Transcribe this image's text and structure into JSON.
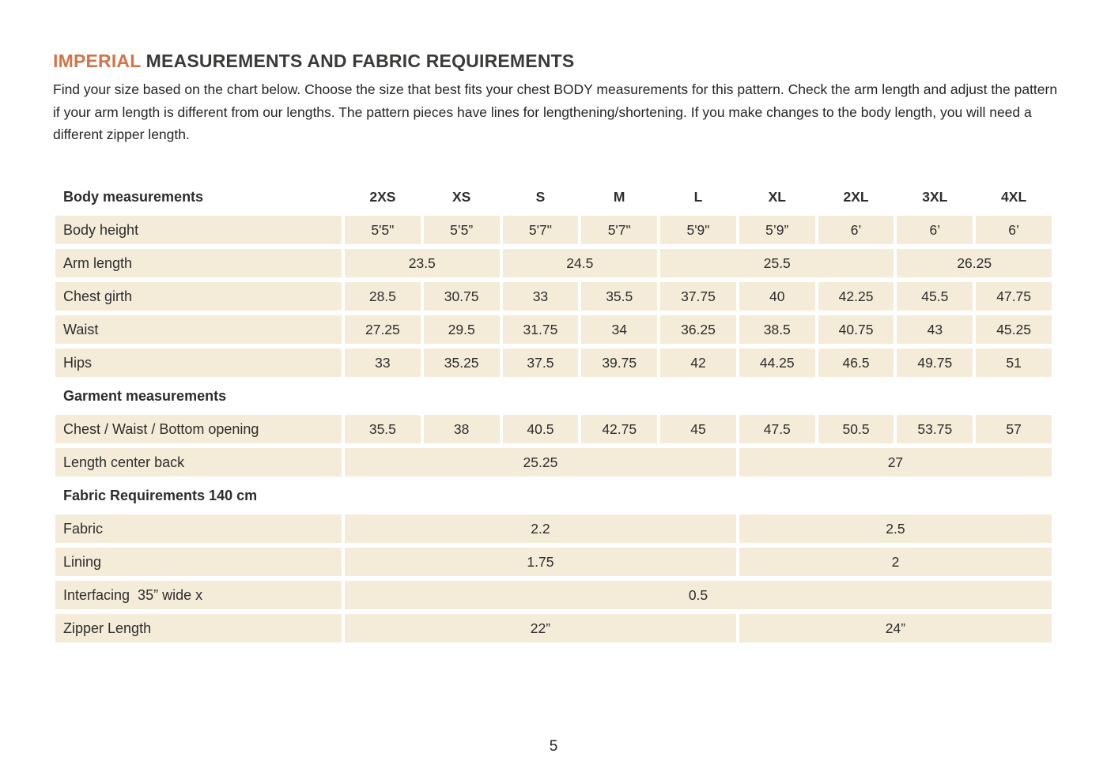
{
  "page": {
    "title": {
      "highlight": "IMPERIAL",
      "rest": " MEASUREMENTS AND FABRIC REQUIREMENTS"
    },
    "intro": "Find your size based on the chart below. Choose the size that best fits your chest BODY measurements for this pattern. Check the arm length and adjust the pattern if your arm length is different from our lengths. The pattern pieces have lines for lengthening/shortening. If you make changes to the body length, you will need a different zipper length.",
    "page_number": "5"
  },
  "colors": {
    "accent_orange": "#d2754a",
    "cell_beige": "#f4ecd9",
    "text": "#2d2d2b"
  },
  "table": {
    "header": {
      "label": "Body measurements",
      "sizes": [
        "2XS",
        "XS",
        "S",
        "M",
        "L",
        "XL",
        "2XL",
        "3XL",
        "4XL"
      ]
    },
    "rows": [
      {
        "type": "data",
        "label": "Body height",
        "cells": [
          {
            "value": "5'5\"",
            "span": 1
          },
          {
            "value": "5’5”",
            "span": 1
          },
          {
            "value": "5'7\"",
            "span": 1
          },
          {
            "value": "5'7\"",
            "span": 1
          },
          {
            "value": "5'9\"",
            "span": 1
          },
          {
            "value": "5’9”",
            "span": 1
          },
          {
            "value": "6’",
            "span": 1
          },
          {
            "value": "6’",
            "span": 1
          },
          {
            "value": "6’",
            "span": 1
          }
        ]
      },
      {
        "type": "data",
        "label": "Arm length",
        "cells": [
          {
            "value": "23.5",
            "span": 2
          },
          {
            "value": "24.5",
            "span": 2
          },
          {
            "value": "25.5",
            "span": 3
          },
          {
            "value": "26.25",
            "span": 2
          }
        ]
      },
      {
        "type": "data",
        "label": "Chest girth",
        "cells": [
          {
            "value": "28.5",
            "span": 1
          },
          {
            "value": "30.75",
            "span": 1
          },
          {
            "value": "33",
            "span": 1
          },
          {
            "value": "35.5",
            "span": 1
          },
          {
            "value": "37.75",
            "span": 1
          },
          {
            "value": "40",
            "span": 1
          },
          {
            "value": "42.25",
            "span": 1
          },
          {
            "value": "45.5",
            "span": 1
          },
          {
            "value": "47.75",
            "span": 1
          }
        ]
      },
      {
        "type": "data",
        "label": "Waist",
        "cells": [
          {
            "value": "27.25",
            "span": 1
          },
          {
            "value": "29.5",
            "span": 1
          },
          {
            "value": "31.75",
            "span": 1
          },
          {
            "value": "34",
            "span": 1
          },
          {
            "value": "36.25",
            "span": 1
          },
          {
            "value": "38.5",
            "span": 1
          },
          {
            "value": "40.75",
            "span": 1
          },
          {
            "value": "43",
            "span": 1
          },
          {
            "value": "45.25",
            "span": 1
          }
        ]
      },
      {
        "type": "data",
        "label": "Hips",
        "cells": [
          {
            "value": "33",
            "span": 1
          },
          {
            "value": "35.25",
            "span": 1
          },
          {
            "value": "37.5",
            "span": 1
          },
          {
            "value": "39.75",
            "span": 1
          },
          {
            "value": "42",
            "span": 1
          },
          {
            "value": "44.25",
            "span": 1
          },
          {
            "value": "46.5",
            "span": 1
          },
          {
            "value": "49.75",
            "span": 1
          },
          {
            "value": "51",
            "span": 1
          }
        ]
      },
      {
        "type": "section",
        "label": "Garment measurements"
      },
      {
        "type": "data",
        "label": "Chest / Waist / Bottom opening",
        "cells": [
          {
            "value": "35.5",
            "span": 1
          },
          {
            "value": "38",
            "span": 1
          },
          {
            "value": "40.5",
            "span": 1
          },
          {
            "value": "42.75",
            "span": 1
          },
          {
            "value": "45",
            "span": 1
          },
          {
            "value": "47.5",
            "span": 1
          },
          {
            "value": "50.5",
            "span": 1
          },
          {
            "value": "53.75",
            "span": 1
          },
          {
            "value": "57",
            "span": 1
          }
        ]
      },
      {
        "type": "data",
        "label": "Length center back",
        "cells": [
          {
            "value": "25.25",
            "span": 5
          },
          {
            "value": "27",
            "span": 4
          }
        ]
      },
      {
        "type": "section",
        "label": "Fabric Requirements 140 cm"
      },
      {
        "type": "data",
        "label": "Fabric",
        "cells": [
          {
            "value": "2.2",
            "span": 5
          },
          {
            "value": "2.5",
            "span": 4
          }
        ]
      },
      {
        "type": "data",
        "label": "Lining",
        "cells": [
          {
            "value": "1.75",
            "span": 5
          },
          {
            "value": "2",
            "span": 4
          }
        ]
      },
      {
        "type": "data",
        "label": "Interfacing  35” wide x",
        "cells": [
          {
            "value": "0.5",
            "span": 9
          }
        ]
      },
      {
        "type": "data",
        "label": "Zipper Length",
        "cells": [
          {
            "value": "22”",
            "span": 5
          },
          {
            "value": "24”",
            "span": 4
          }
        ]
      }
    ]
  }
}
